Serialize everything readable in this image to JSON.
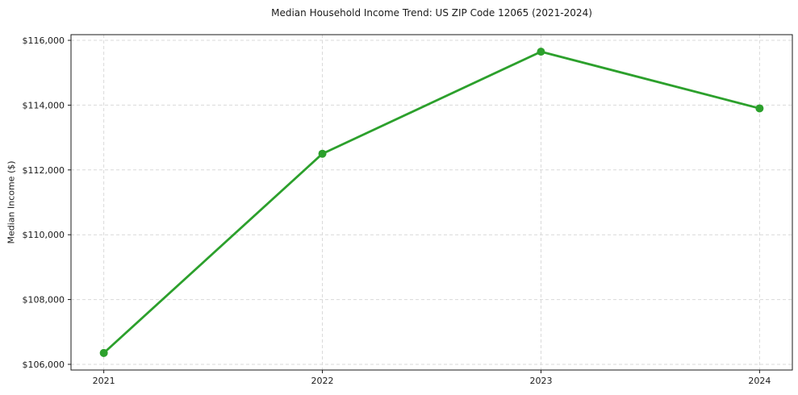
{
  "chart_data": {
    "type": "line",
    "title": "Median Household Income Trend: US ZIP Code 12065 (2021-2024)",
    "xlabel": "",
    "ylabel": "Median Income ($)",
    "x": [
      2021,
      2022,
      2023,
      2024
    ],
    "xtick_labels": [
      "2021",
      "2022",
      "2023",
      "2024"
    ],
    "series": [
      {
        "name": "Median household income",
        "values": [
          106350,
          112500,
          115650,
          113900
        ],
        "color": "#2ca02c",
        "marker": "circle"
      }
    ],
    "yticks": [
      106000,
      108000,
      110000,
      112000,
      114000,
      116000
    ],
    "ytick_labels": [
      "$106,000",
      "$108,000",
      "$110,000",
      "$112,000",
      "$114,000",
      "$116,000"
    ],
    "ylim": [
      105825,
      116175
    ],
    "xlim": [
      2020.85,
      2024.15
    ],
    "grid": "dashed-both",
    "legend": "none",
    "colors": {
      "line": "#2ca02c",
      "grid": "#d9d9d9",
      "spine": "#1a1a1a",
      "text": "#1a1a1a",
      "background": "#ffffff"
    }
  }
}
